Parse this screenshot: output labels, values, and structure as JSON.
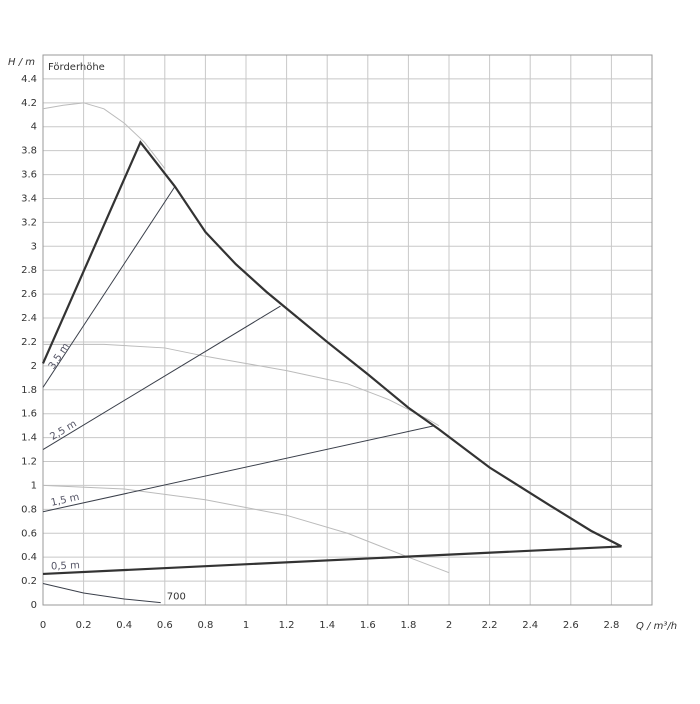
{
  "chart_data": {
    "type": "line",
    "y_label": "H / m",
    "subtitle": "Förderhöhe",
    "x_label": "Q / m³/h",
    "xlim": [
      0,
      3
    ],
    "ylim": [
      0,
      4.6
    ],
    "xticks": [
      0,
      0.2,
      0.4,
      0.6,
      0.8,
      1,
      1.2,
      1.4,
      1.6,
      1.8,
      2,
      2.2,
      2.4,
      2.6,
      2.8
    ],
    "yticks": [
      0,
      0.2,
      0.4,
      0.6,
      0.8,
      1,
      1.2,
      1.4,
      1.6,
      1.8,
      2,
      2.2,
      2.4,
      2.6,
      2.8,
      3,
      3.2,
      3.4,
      3.6,
      3.8,
      4,
      4.2,
      4.4
    ],
    "grid": true,
    "series": [
      {
        "color": "#bbbbbb",
        "width": 1,
        "x": [
          0,
          0.1,
          0.2,
          0.3,
          0.4,
          0.5,
          0.6
        ],
        "values": [
          4.15,
          4.18,
          4.2,
          4.15,
          4.03,
          3.87,
          3.65
        ]
      },
      {
        "color": "#bbbbbb",
        "width": 1,
        "x": [
          0,
          0.3,
          0.6,
          0.8,
          1.0,
          1.2,
          1.5,
          1.7,
          1.9,
          1.95
        ],
        "values": [
          2.18,
          2.18,
          2.15,
          2.08,
          2.02,
          1.96,
          1.85,
          1.72,
          1.55,
          1.5
        ]
      },
      {
        "color": "#bbbbbb",
        "width": 1,
        "x": [
          0,
          0.4,
          0.8,
          1.2,
          1.5,
          1.8,
          2.0
        ],
        "values": [
          1.0,
          0.97,
          0.88,
          0.75,
          0.6,
          0.4,
          0.27
        ]
      },
      {
        "name": "3,5 m",
        "label_position": "start",
        "color": "#3a3f4a",
        "width": 1,
        "x": [
          0,
          0.65
        ],
        "values": [
          1.82,
          3.5
        ]
      },
      {
        "name": "2,5 m",
        "label_position": "start",
        "color": "#3a3f4a",
        "width": 1,
        "x": [
          0,
          1.17
        ],
        "values": [
          1.3,
          2.5
        ]
      },
      {
        "name": "1,5 m",
        "label_position": "start",
        "color": "#3a3f4a",
        "width": 1,
        "x": [
          0,
          1.93
        ],
        "values": [
          0.78,
          1.5
        ]
      },
      {
        "name": "0,5 m",
        "label_position": "start",
        "color": "#333333",
        "width": 2.2,
        "x": [
          0,
          2.85
        ],
        "values": [
          0.26,
          0.49
        ]
      },
      {
        "color": "#333333",
        "width": 2.2,
        "x": [
          0,
          0.48,
          0.65,
          0.8,
          0.95,
          1.1,
          1.2,
          1.4,
          1.6,
          1.8,
          1.95,
          2.2,
          2.5,
          2.7,
          2.85
        ],
        "values": [
          2.02,
          3.87,
          3.5,
          3.12,
          2.85,
          2.62,
          2.48,
          2.2,
          1.93,
          1.65,
          1.47,
          1.15,
          0.83,
          0.62,
          0.49
        ]
      },
      {
        "name": "700",
        "label_position": "end",
        "color": "#3a3f4a",
        "width": 1,
        "x": [
          0,
          0.2,
          0.4,
          0.58
        ],
        "values": [
          0.18,
          0.1,
          0.05,
          0.02
        ]
      }
    ]
  }
}
